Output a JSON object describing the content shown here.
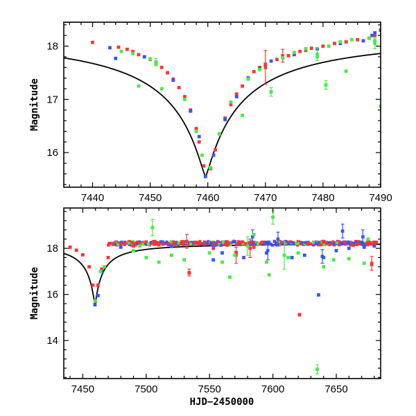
{
  "chart_data": [
    {
      "type": "scatter",
      "title": "",
      "xlabel": "",
      "ylabel": "Magnitude",
      "xlim": [
        7435,
        7490
      ],
      "ylim": [
        18.45,
        15.35
      ],
      "y_inverted": true,
      "xticks": [
        7440,
        7450,
        7460,
        7470,
        7480,
        7490
      ],
      "yticks": [
        16,
        17,
        18
      ],
      "model_curve": {
        "t0": 7459.6,
        "peak_mag": 15.55,
        "base_mag": 18.21,
        "width": 2.6
      },
      "series": [
        {
          "name": "",
          "color": "#ff3333",
          "points": [
            [
              7440,
              18.07
            ],
            [
              7444.5,
              17.98
            ],
            [
              7446,
              17.94
            ],
            [
              7447,
              17.9
            ],
            [
              7448,
              17.84
            ],
            [
              7449,
              17.8
            ],
            [
              7450,
              17.75
            ],
            [
              7451,
              17.68
            ],
            [
              7452,
              17.6
            ],
            [
              7453,
              17.5
            ],
            [
              7454,
              17.38
            ],
            [
              7455,
              17.22
            ],
            [
              7456,
              17.05
            ],
            [
              7457,
              16.8
            ],
            [
              7458,
              16.45
            ],
            [
              7458.5,
              16.2
            ],
            [
              7459.3,
              15.75
            ],
            [
              7460.5,
              15.7
            ],
            [
              7461.3,
              16.05
            ],
            [
              7462,
              16.35
            ],
            [
              7463,
              16.65
            ],
            [
              7464,
              16.9
            ],
            [
              7465,
              17.1
            ],
            [
              7466,
              17.25
            ],
            [
              7467,
              17.4
            ],
            [
              7468,
              17.52
            ],
            [
              7469,
              17.6
            ],
            [
              7470,
              17.66
            ],
            [
              7472,
              17.75
            ],
            [
              7474,
              17.82
            ],
            [
              7475,
              17.85
            ],
            [
              7476,
              17.9
            ],
            [
              7477,
              17.92
            ],
            [
              7478,
              17.96
            ],
            [
              7480,
              18.0
            ],
            [
              7482,
              18.05
            ],
            [
              7484,
              18.08
            ],
            [
              7486,
              18.12
            ],
            [
              7488,
              18.15
            ],
            [
              7489,
              18.2
            ]
          ],
          "errors": [
            [
              7470,
              17.6,
              0.32
            ],
            [
              7473,
              17.82,
              0.12
            ]
          ]
        },
        {
          "name": "",
          "color": "#3355ff",
          "points": [
            [
              7443,
              17.97
            ],
            [
              7444,
              17.77
            ],
            [
              7449,
              17.8
            ],
            [
              7451,
              17.7
            ],
            [
              7454,
              17.36
            ],
            [
              7457,
              16.78
            ],
            [
              7458.5,
              16.3
            ],
            [
              7459.6,
              15.55
            ],
            [
              7461,
              15.95
            ],
            [
              7463,
              16.62
            ],
            [
              7465,
              17.05
            ],
            [
              7467,
              17.4
            ],
            [
              7469,
              17.58
            ],
            [
              7471,
              17.72
            ],
            [
              7475,
              17.84
            ],
            [
              7479,
              17.95
            ],
            [
              7483,
              18.05
            ],
            [
              7487,
              18.1
            ],
            [
              7488.5,
              18.2
            ],
            [
              7489,
              18.25
            ],
            [
              7490,
              18.3
            ]
          ],
          "errors": []
        },
        {
          "name": "",
          "color": "#44ee44",
          "points": [
            [
              7445,
              17.9
            ],
            [
              7447,
              17.86
            ],
            [
              7448,
              17.25
            ],
            [
              7450,
              17.76
            ],
            [
              7451,
              17.67
            ],
            [
              7452,
              17.2
            ],
            [
              7456,
              17.0
            ],
            [
              7458,
              16.4
            ],
            [
              7459,
              15.95
            ],
            [
              7460.4,
              15.72
            ],
            [
              7462,
              16.35
            ],
            [
              7464,
              16.95
            ],
            [
              7466,
              16.7
            ],
            [
              7467,
              17.38
            ],
            [
              7469,
              17.56
            ],
            [
              7471,
              17.14
            ],
            [
              7473,
              17.78
            ],
            [
              7475,
              17.88
            ],
            [
              7477,
              17.95
            ],
            [
              7479,
              17.8
            ],
            [
              7480.5,
              17.27
            ],
            [
              7481,
              18.0
            ],
            [
              7483,
              18.08
            ],
            [
              7484,
              17.53
            ],
            [
              7485,
              18.12
            ],
            [
              7488,
              18.15
            ],
            [
              7489,
              18.1
            ],
            [
              7490,
              16.87
            ]
          ],
          "errors": [
            [
              7471,
              17.14,
              0.08
            ],
            [
              7480.5,
              17.27,
              0.08
            ],
            [
              7479,
              17.85,
              0.12
            ],
            [
              7451,
              17.7,
              0.07
            ],
            [
              7489,
              18.05,
              0.1
            ]
          ]
        }
      ]
    },
    {
      "type": "scatter",
      "title": "",
      "xlabel": "HJD−2450000",
      "ylabel": "Magnitude",
      "xlim": [
        7435,
        7685
      ],
      "ylim": [
        19.75,
        12.35
      ],
      "y_inverted": true,
      "xticks": [
        7450,
        7500,
        7550,
        7600,
        7650
      ],
      "yticks": [
        14,
        16,
        18
      ],
      "model_curve": {
        "t0": 7459.6,
        "peak_mag": 15.55,
        "base_mag": 18.21,
        "width": 2.6
      },
      "dense_baseline": {
        "x_range": [
          7470,
          7682
        ],
        "mag": 18.22,
        "scatter": 0.1
      },
      "series": [
        {
          "name": "",
          "color": "#ff3333",
          "points": [
            [
              7440,
              18.05
            ],
            [
              7445,
              17.92
            ],
            [
              7450,
              17.72
            ],
            [
              7455,
              17.2
            ],
            [
              7458,
              16.4
            ],
            [
              7460,
              15.7
            ],
            [
              7462,
              16.4
            ],
            [
              7465,
              17.1
            ],
            [
              7470,
              17.6
            ],
            [
              7490,
              18.1
            ],
            [
              7510,
              18.15
            ],
            [
              7534,
              16.93
            ],
            [
              7553,
              18.0
            ],
            [
              7571,
              17.82
            ],
            [
              7585,
              18.05
            ],
            [
              7621,
              15.12
            ],
            [
              7640,
              18.3
            ],
            [
              7678,
              17.3
            ]
          ],
          "errors": [
            [
              7534,
              16.95,
              0.15
            ],
            [
              7571,
              17.7,
              0.35
            ],
            [
              7582,
              18.0,
              0.4
            ],
            [
              7621,
              15.12,
              0.06
            ],
            [
              7532,
              18.3,
              0.3
            ],
            [
              7678,
              17.35,
              0.3
            ]
          ]
        },
        {
          "name": "",
          "color": "#3355ff",
          "points": [
            [
              7459.6,
              15.55
            ],
            [
              7462,
              15.95
            ],
            [
              7465,
              17.0
            ],
            [
              7480,
              18.05
            ],
            [
              7520,
              18.1
            ],
            [
              7553,
              17.5
            ],
            [
              7560,
              17.8
            ],
            [
              7577,
              17.6
            ],
            [
              7595,
              17.8
            ],
            [
              7615,
              17.6
            ],
            [
              7625,
              17.7
            ],
            [
              7636,
              15.98
            ],
            [
              7640,
              17.6
            ],
            [
              7650,
              17.9
            ],
            [
              7660,
              18.0
            ],
            [
              7672,
              18.05
            ],
            [
              7680,
              18.1
            ]
          ],
          "errors": [
            [
              7584,
              18.5,
              0.3
            ],
            [
              7596,
              17.9,
              0.4
            ],
            [
              7639,
              17.65,
              0.3
            ],
            [
              7655,
              18.75,
              0.3
            ],
            [
              7671,
              18.5,
              0.3
            ],
            [
              7604,
              18.4,
              0.3
            ]
          ]
        },
        {
          "name": "",
          "color": "#44ee44",
          "points": [
            [
              7460,
              15.72
            ],
            [
              7464,
              17.0
            ],
            [
              7467,
              17.2
            ],
            [
              7490,
              17.9
            ],
            [
              7495,
              18.1
            ],
            [
              7500,
              17.6
            ],
            [
              7505,
              18.9
            ],
            [
              7510,
              17.4
            ],
            [
              7520,
              17.7
            ],
            [
              7530,
              17.5
            ],
            [
              7550,
              17.8
            ],
            [
              7560,
              17.4
            ],
            [
              7566,
              16.75
            ],
            [
              7570,
              17.7
            ],
            [
              7585,
              18.6
            ],
            [
              7595,
              17.4
            ],
            [
              7597,
              16.85
            ],
            [
              7600,
              19.35
            ],
            [
              7612,
              17.6
            ],
            [
              7620,
              17.8
            ],
            [
              7635,
              12.75
            ],
            [
              7640,
              17.2
            ],
            [
              7648,
              17.5
            ],
            [
              7660,
              17.55
            ],
            [
              7672,
              17.35
            ],
            [
              7675,
              18.4
            ]
          ],
          "errors": [
            [
              7505,
              18.9,
              0.35
            ],
            [
              7600,
              19.35,
              0.3
            ],
            [
              7609,
              17.7,
              0.6
            ],
            [
              7635,
              12.75,
              0.2
            ],
            [
              7580,
              18.1,
              0.4
            ]
          ]
        }
      ]
    }
  ]
}
